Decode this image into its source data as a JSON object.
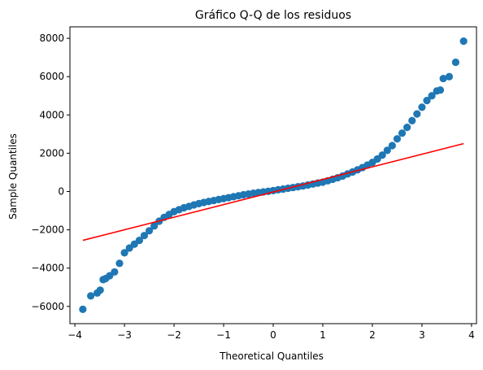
{
  "chart_data": {
    "type": "scatter",
    "title": "Gráfico Q-Q de los residuos",
    "xlabel": "Theoretical Quantiles",
    "ylabel": "Sample Quantiles",
    "xlim": [
      -4.1,
      4.1
    ],
    "ylim": [
      -6900,
      8600
    ],
    "xticks": [
      -4,
      -3,
      -2,
      -1,
      0,
      1,
      2,
      3,
      4
    ],
    "yticks": [
      -6000,
      -4000,
      -2000,
      0,
      2000,
      4000,
      6000,
      8000
    ],
    "grid": false,
    "colors": {
      "points": "#1f77b4",
      "line": "#ff0000"
    },
    "series": [
      {
        "kind": "points",
        "x": [
          -3.84,
          -3.68,
          -3.55,
          -3.49,
          -3.43,
          -3.38,
          -3.3,
          -3.2,
          -3.1,
          -3.0,
          -2.9,
          -2.8,
          -2.7,
          -2.6,
          -2.5,
          -2.4,
          -2.3,
          -2.2,
          -2.1,
          -2.0,
          -1.9,
          -1.8,
          -1.7,
          -1.6,
          -1.5,
          -1.4,
          -1.3,
          -1.2,
          -1.1,
          -1.0,
          -0.9,
          -0.8,
          -0.7,
          -0.6,
          -0.5,
          -0.4,
          -0.3,
          -0.2,
          -0.1,
          0.0,
          0.1,
          0.2,
          0.3,
          0.4,
          0.5,
          0.6,
          0.7,
          0.8,
          0.9,
          1.0,
          1.1,
          1.2,
          1.3,
          1.4,
          1.5,
          1.6,
          1.7,
          1.8,
          1.9,
          2.0,
          2.1,
          2.2,
          2.3,
          2.4,
          2.5,
          2.6,
          2.7,
          2.8,
          2.9,
          3.0,
          3.1,
          3.2,
          3.3,
          3.37,
          3.43,
          3.55,
          3.68,
          3.84
        ],
        "y": [
          -6150,
          -5450,
          -5300,
          -5150,
          -4600,
          -4550,
          -4400,
          -4200,
          -3750,
          -3200,
          -2950,
          -2750,
          -2550,
          -2300,
          -2050,
          -1800,
          -1550,
          -1350,
          -1200,
          -1050,
          -950,
          -850,
          -780,
          -700,
          -630,
          -570,
          -520,
          -470,
          -420,
          -370,
          -320,
          -270,
          -220,
          -170,
          -130,
          -90,
          -50,
          -20,
          10,
          50,
          90,
          130,
          170,
          210,
          250,
          290,
          340,
          390,
          440,
          490,
          560,
          640,
          720,
          810,
          920,
          1020,
          1130,
          1250,
          1380,
          1520,
          1700,
          1900,
          2150,
          2400,
          2750,
          3050,
          3350,
          3700,
          4050,
          4400,
          4750,
          5000,
          5250,
          5300,
          5900,
          6000,
          6750,
          7850
        ]
      },
      {
        "kind": "reference-line",
        "x": [
          -3.84,
          3.84
        ],
        "y": [
          -2550,
          2500
        ]
      }
    ]
  }
}
